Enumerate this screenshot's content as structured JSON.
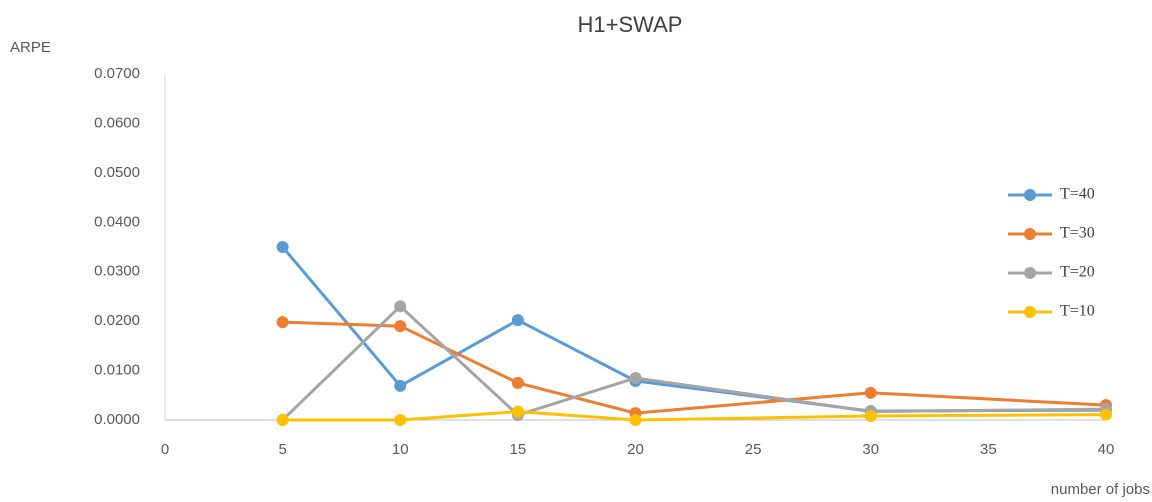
{
  "chart_data": {
    "type": "line",
    "title": "H1+SWAP",
    "y_label": "ARPE",
    "x_label": "number of jobs",
    "x": [
      5,
      10,
      15,
      20,
      30,
      40
    ],
    "series": [
      {
        "name": "T=40",
        "color": "#5b9bd5",
        "values": [
          0.035,
          0.0069,
          0.0202,
          0.0079,
          0.0018,
          0.002
        ]
      },
      {
        "name": "T=30",
        "color": "#ed7d31",
        "values": [
          0.0198,
          0.019,
          0.0075,
          0.0014,
          0.0055,
          0.003
        ]
      },
      {
        "name": "T=20",
        "color": "#a5a5a5",
        "values": [
          0,
          0.023,
          0.001,
          0.0085,
          0.0017,
          0.0022
        ]
      },
      {
        "name": "T=10",
        "color": "#ffc000",
        "values": [
          0,
          0,
          0.0017,
          0,
          0.0008,
          0.0011
        ]
      }
    ],
    "xlim": [
      0,
      40
    ],
    "xticks": [
      0,
      5,
      10,
      15,
      20,
      25,
      30,
      35,
      40
    ],
    "ylim": [
      0,
      0.07
    ],
    "yticks": [
      {
        "value": 0,
        "label": "0.0000"
      },
      {
        "value": 0.01,
        "label": "0.0100"
      },
      {
        "value": 0.02,
        "label": "0.0200"
      },
      {
        "value": 0.03,
        "label": "0.0300"
      },
      {
        "value": 0.04,
        "label": "0.0400"
      },
      {
        "value": 0.05,
        "label": "0.0500"
      },
      {
        "value": 0.06,
        "label": "0.0600"
      },
      {
        "value": 0.07,
        "label": "0.0700"
      }
    ],
    "grid": false,
    "legend": "right"
  }
}
